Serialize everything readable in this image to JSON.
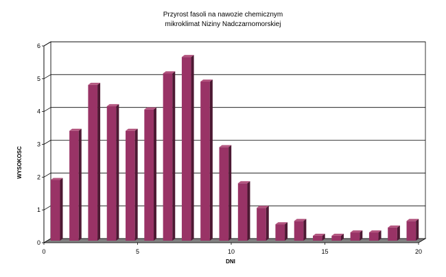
{
  "chart_data": {
    "type": "bar",
    "title_lines": [
      "Przyrost fasoli na nawozie chemicznym",
      "mikroklimat Niziny Nadczarnomorskiej"
    ],
    "xlabel": "DNI",
    "ylabel": "WYSOKOSC",
    "x": [
      0.5,
      1.5,
      2.5,
      3.5,
      4.5,
      5.5,
      6.5,
      7.5,
      8.5,
      9.5,
      10.5,
      11.5,
      12.5,
      13.5,
      14.5,
      15.5,
      16.5,
      17.5,
      18.5,
      19.5
    ],
    "values": [
      1.85,
      3.35,
      4.75,
      4.1,
      3.35,
      4.0,
      5.1,
      5.6,
      4.85,
      2.85,
      1.75,
      1.0,
      0.5,
      0.6,
      0.15,
      0.15,
      0.25,
      0.25,
      0.4,
      0.6
    ],
    "xlim": [
      0,
      20
    ],
    "ylim": [
      0,
      6
    ],
    "xticks": [
      "0",
      "5",
      "10",
      "15",
      "20"
    ],
    "yticks": [
      "0",
      "1",
      "2",
      "3",
      "4",
      "5",
      "6"
    ],
    "grid": true,
    "bar_color": "#993366",
    "bar_side_color": "#4d1933",
    "bar_top_color": "#b3557f",
    "floor_color": "#808080",
    "wall_color": "#ffffff"
  }
}
